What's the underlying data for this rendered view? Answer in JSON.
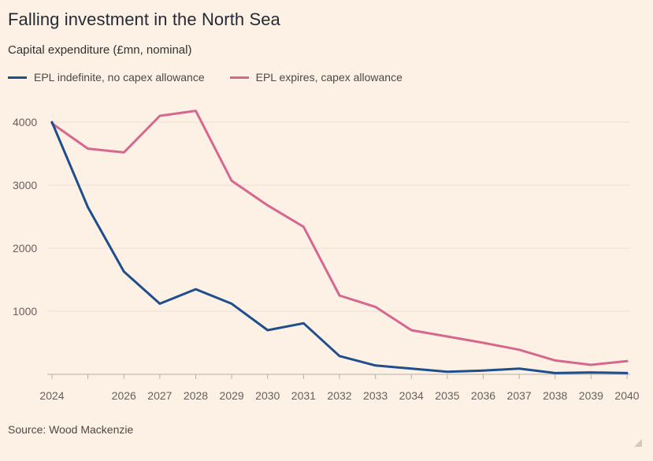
{
  "header": {
    "title": "Falling investment in the North Sea",
    "subtitle": "Capital expenditure (£mn, nominal)"
  },
  "legend": [
    {
      "label": "EPL indefinite, no capex allowance",
      "color": "#1f4e8c"
    },
    {
      "label": "EPL expires, capex allowance",
      "color": "#d6678e"
    }
  ],
  "footer": {
    "source": "Source: Wood Mackenzie"
  },
  "colors": {
    "background": "#fdf1e6",
    "gridline": "#ecdfd4",
    "series_1": "#1f4e8c",
    "series_2": "#d6678e"
  },
  "chart_data": {
    "type": "line",
    "title": "Falling investment in the North Sea",
    "subtitle": "Capital expenditure (£mn, nominal)",
    "xlabel": "",
    "ylabel": "",
    "x": [
      2024,
      2025,
      2026,
      2027,
      2028,
      2029,
      2030,
      2031,
      2032,
      2033,
      2034,
      2035,
      2036,
      2037,
      2038,
      2039,
      2040
    ],
    "x_tick_labels": [
      "2024",
      "",
      "2026",
      "2027",
      "2028",
      "2029",
      "2030",
      "2031",
      "2032",
      "2033",
      "2034",
      "2035",
      "2036",
      "2037",
      "2038",
      "2039",
      "2040"
    ],
    "xlim": [
      2024,
      2040
    ],
    "y_ticks": [
      1000,
      2000,
      3000,
      4000
    ],
    "ylim": [
      0,
      4250
    ],
    "grid": true,
    "legend_position": "top-left",
    "series": [
      {
        "name": "EPL indefinite, no capex allowance",
        "values": [
          4000,
          2650,
          1630,
          1120,
          1350,
          1120,
          700,
          810,
          290,
          140,
          90,
          40,
          60,
          90,
          20,
          30,
          20
        ]
      },
      {
        "name": "EPL expires, capex allowance",
        "values": [
          3980,
          3580,
          3520,
          4100,
          4180,
          3070,
          2680,
          2340,
          1250,
          1070,
          700,
          600,
          500,
          390,
          220,
          150,
          210
        ]
      }
    ],
    "source": "Source: Wood Mackenzie"
  }
}
